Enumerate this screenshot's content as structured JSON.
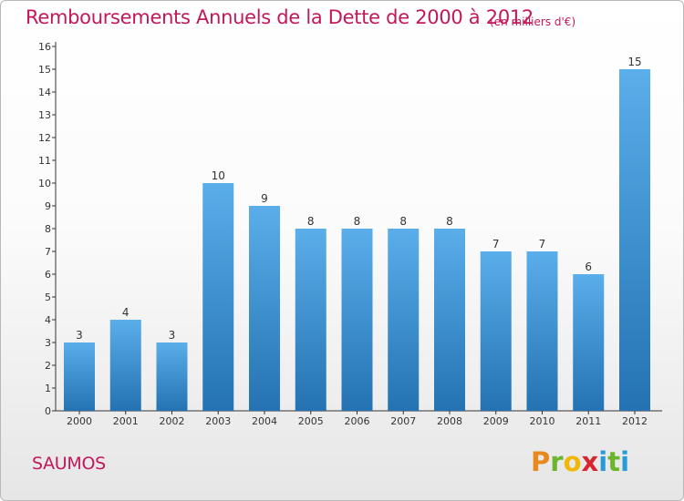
{
  "header": {
    "title": "Remboursements Annuels de la Dette de 2000 à 2012",
    "unit": "(en milliers d'€)"
  },
  "footer": {
    "city": "SAUMOS",
    "logo": [
      "P",
      "r",
      "o",
      "x",
      "i",
      "t",
      "i"
    ],
    "logo_colors": [
      "#e8891e",
      "#6cb52d",
      "#f2b705",
      "#d8262e",
      "#2a9ad6",
      "#6cb52d",
      "#2a9ad6"
    ]
  },
  "colors": {
    "bar_top": "#5aaeea",
    "bar_bottom": "#2472b2",
    "axis": "#333333",
    "title": "#c2185b"
  },
  "chart_data": {
    "type": "bar",
    "categories": [
      "2000",
      "2001",
      "2002",
      "2003",
      "2004",
      "2005",
      "2006",
      "2007",
      "2008",
      "2009",
      "2010",
      "2011",
      "2012"
    ],
    "values": [
      3,
      4,
      3,
      10,
      9,
      8,
      8,
      8,
      8,
      7,
      7,
      6,
      15
    ],
    "ylim": [
      0,
      16
    ],
    "yticks": [
      0,
      1,
      2,
      3,
      4,
      5,
      6,
      7,
      8,
      9,
      10,
      11,
      12,
      13,
      14,
      15,
      16
    ],
    "grid": false,
    "legend": "none"
  }
}
